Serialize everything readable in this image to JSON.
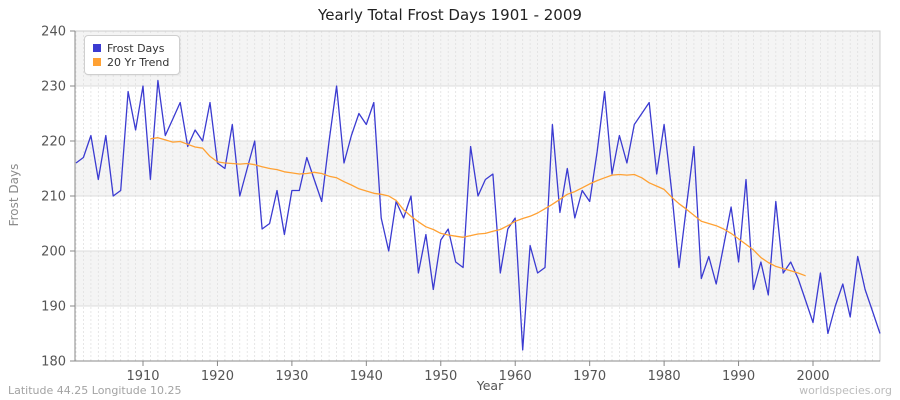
{
  "header": {
    "title": "Yearly Total Frost Days 1901 - 2009"
  },
  "axes": {
    "x_label": "Year",
    "y_label": "Frost Days",
    "x_ticks": [
      1910,
      1920,
      1930,
      1940,
      1950,
      1960,
      1970,
      1980,
      1990,
      2000
    ],
    "y_ticks": [
      180,
      190,
      200,
      210,
      220,
      230,
      240
    ]
  },
  "legend": {
    "items": [
      {
        "label": "Frost Days",
        "color": "#3b3bd1"
      },
      {
        "label": "20 Yr Trend",
        "color": "#ffa133"
      }
    ]
  },
  "footer": {
    "left": "Latitude 44.25 Longitude 10.25",
    "right": "worldspecies.org"
  },
  "colors": {
    "frost_line": "#3b3bd1",
    "trend_line": "#ffa133",
    "band_gray": "#f4f4f4",
    "grid_h": "#dcdcdc",
    "grid_v": "#e0e0e0",
    "axis": "#888888",
    "box_border": "#cccccc",
    "tick_text": "#555555"
  },
  "chart_data": {
    "type": "line",
    "title": "Yearly Total Frost Days 1901 - 2009",
    "xlabel": "Year",
    "ylabel": "Frost Days",
    "xlim": [
      1901,
      2009
    ],
    "ylim": [
      180,
      240
    ],
    "grid": true,
    "legend_position": "top-left",
    "series": [
      {
        "name": "Frost Days",
        "color": "#3b3bd1",
        "x_start": 1901,
        "values": [
          216,
          217,
          221,
          213,
          221,
          210,
          211,
          229,
          222,
          230,
          213,
          231,
          221,
          224,
          227,
          219,
          222,
          220,
          227,
          216,
          215,
          223,
          210,
          215,
          220,
          204,
          205,
          211,
          203,
          211,
          211,
          217,
          213,
          209,
          220,
          230,
          216,
          221,
          225,
          223,
          227,
          206,
          200,
          209,
          206,
          210,
          196,
          203,
          193,
          202,
          204,
          198,
          197,
          219,
          210,
          213,
          214,
          196,
          204,
          206,
          182,
          201,
          196,
          197,
          223,
          207,
          215,
          206,
          211,
          209,
          218,
          229,
          214,
          221,
          216,
          223,
          225,
          227,
          214,
          223,
          211,
          197,
          208,
          219,
          195,
          199,
          194,
          201,
          208,
          198,
          213,
          193,
          198,
          192,
          209,
          196,
          198,
          195,
          191,
          187,
          196,
          185,
          190,
          194,
          188,
          199,
          193,
          189,
          185
        ]
      },
      {
        "name": "20 Yr Trend",
        "color": "#ffa133",
        "x_start": 1911,
        "values": [
          220.4,
          220.6,
          220.2,
          219.8,
          219.9,
          219.4,
          218.9,
          218.7,
          217.2,
          216.2,
          216.0,
          215.9,
          215.8,
          215.9,
          215.7,
          215.3,
          215.0,
          214.8,
          214.4,
          214.2,
          214.0,
          214.1,
          214.3,
          214.1,
          213.6,
          213.3,
          212.6,
          212.0,
          211.3,
          210.9,
          210.5,
          210.3,
          210.0,
          209.2,
          207.5,
          206.3,
          205.3,
          204.4,
          203.9,
          203.2,
          202.9,
          202.7,
          202.5,
          202.8,
          203.1,
          203.2,
          203.6,
          203.9,
          204.6,
          205.4,
          205.9,
          206.3,
          206.9,
          207.7,
          208.5,
          209.4,
          210.3,
          210.8,
          211.5,
          212.2,
          212.8,
          213.3,
          213.8,
          213.9,
          213.8,
          213.9,
          213.3,
          212.4,
          211.8,
          211.2,
          209.8,
          208.6,
          207.6,
          206.5,
          205.4,
          205.0,
          204.6,
          204.0,
          203.2,
          202.2,
          201.2,
          200.2,
          198.8,
          197.9,
          197.2,
          196.8,
          196.4,
          196.0,
          195.5
        ]
      }
    ]
  }
}
